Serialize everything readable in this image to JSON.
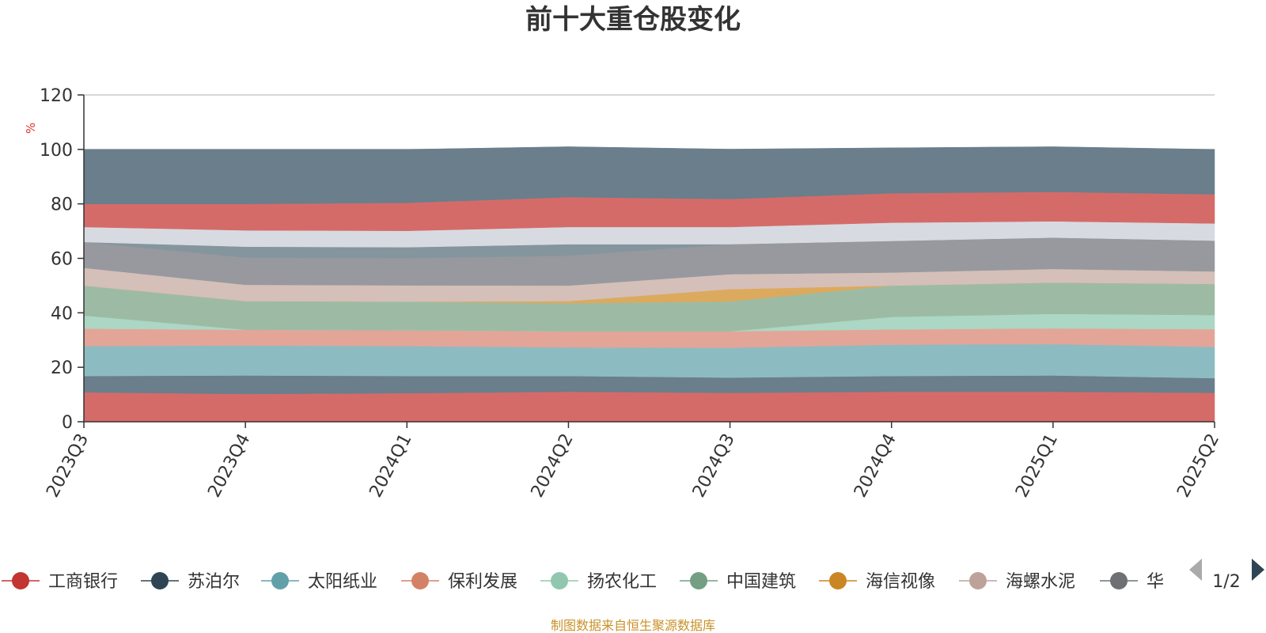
{
  "chart_data": {
    "type": "area",
    "stacked": true,
    "percent_stacked": true,
    "title": "前十大重仓股变化",
    "y_unit": "%",
    "ylim": [
      0,
      120
    ],
    "y_ticks": [
      "0",
      "20",
      "40",
      "60",
      "80",
      "100",
      "120"
    ],
    "grid": true,
    "categories": [
      "2023Q3",
      "2023Q4",
      "2024Q1",
      "2024Q2",
      "2024Q3",
      "2024Q4",
      "2025Q1",
      "2025Q2"
    ],
    "series": [
      {
        "name": "工商银行",
        "color": "#d56b69",
        "values": [
          10.8,
          10.2,
          10.5,
          11.0,
          10.6,
          11.0,
          11.0,
          10.6
        ]
      },
      {
        "name": "苏泊尔",
        "color": "#6a7e8c",
        "values": [
          6.0,
          6.8,
          6.3,
          5.8,
          5.6,
          5.8,
          6.0,
          5.4
        ]
      },
      {
        "name": "太阳纸业",
        "color": "#8dbbc2",
        "values": [
          11.0,
          11.0,
          11.0,
          10.5,
          11.0,
          11.5,
          11.5,
          11.5
        ]
      },
      {
        "name": "保利发展",
        "color": "#e3a597",
        "values": [
          6.4,
          5.8,
          5.8,
          5.9,
          6.0,
          5.6,
          5.8,
          6.5
        ]
      },
      {
        "name": "扬农化工",
        "color": "#abd7c4",
        "values": [
          4.8,
          0,
          0,
          0,
          0,
          4.6,
          5.3,
          5.2
        ]
      },
      {
        "name": "中国建筑",
        "color": "#9dbba4",
        "values": [
          11.0,
          10.5,
          10.5,
          10.3,
          11.0,
          11.5,
          11.5,
          11.4
        ]
      },
      {
        "name": "海信视像",
        "color": "#dcaa5e",
        "values": [
          0,
          0,
          0,
          0.8,
          4.5,
          0,
          0,
          0
        ]
      },
      {
        "name": "海螺水泥",
        "color": "#d5bfb9",
        "values": [
          6.5,
          6.0,
          6.0,
          5.7,
          5.5,
          4.8,
          5.0,
          4.6
        ]
      },
      {
        "name": "华",
        "color": "#97999e",
        "values": [
          9.5,
          10.0,
          10.0,
          11.0,
          11.0,
          11.6,
          11.5,
          11.3
        ]
      },
      {
        "name": "",
        "color": "#85959e",
        "values": [
          0,
          4.0,
          4.0,
          4.2,
          0,
          0,
          0,
          0
        ]
      },
      {
        "name": "",
        "color": "#d7dbe1",
        "values": [
          5.5,
          6.0,
          6.0,
          6.3,
          6.3,
          6.7,
          6.0,
          6.3
        ]
      },
      {
        "name": "",
        "color": "#d56b69",
        "values": [
          8.5,
          9.7,
          10.3,
          11.0,
          10.3,
          10.8,
          10.8,
          10.7
        ]
      },
      {
        "name": "",
        "color": "#6a7e8c",
        "values": [
          20.0,
          20.0,
          19.6,
          18.5,
          18.3,
          16.7,
          16.6,
          16.5
        ]
      }
    ]
  },
  "legend": {
    "items": [
      {
        "label": "工商银行",
        "color": "#c23531"
      },
      {
        "label": "苏泊尔",
        "color": "#2f4554"
      },
      {
        "label": "太阳纸业",
        "color": "#61a0a8"
      },
      {
        "label": "保利发展",
        "color": "#d48265"
      },
      {
        "label": "扬农化工",
        "color": "#91c7ae"
      },
      {
        "label": "中国建筑",
        "color": "#749f83"
      },
      {
        "label": "海信视像",
        "color": "#ca8622"
      },
      {
        "label": "海螺水泥",
        "color": "#bda29a"
      },
      {
        "label": "华",
        "color": "#6e7074"
      }
    ],
    "pager": "1/2"
  },
  "source_note": "制图数据来自恒生聚源数据库"
}
